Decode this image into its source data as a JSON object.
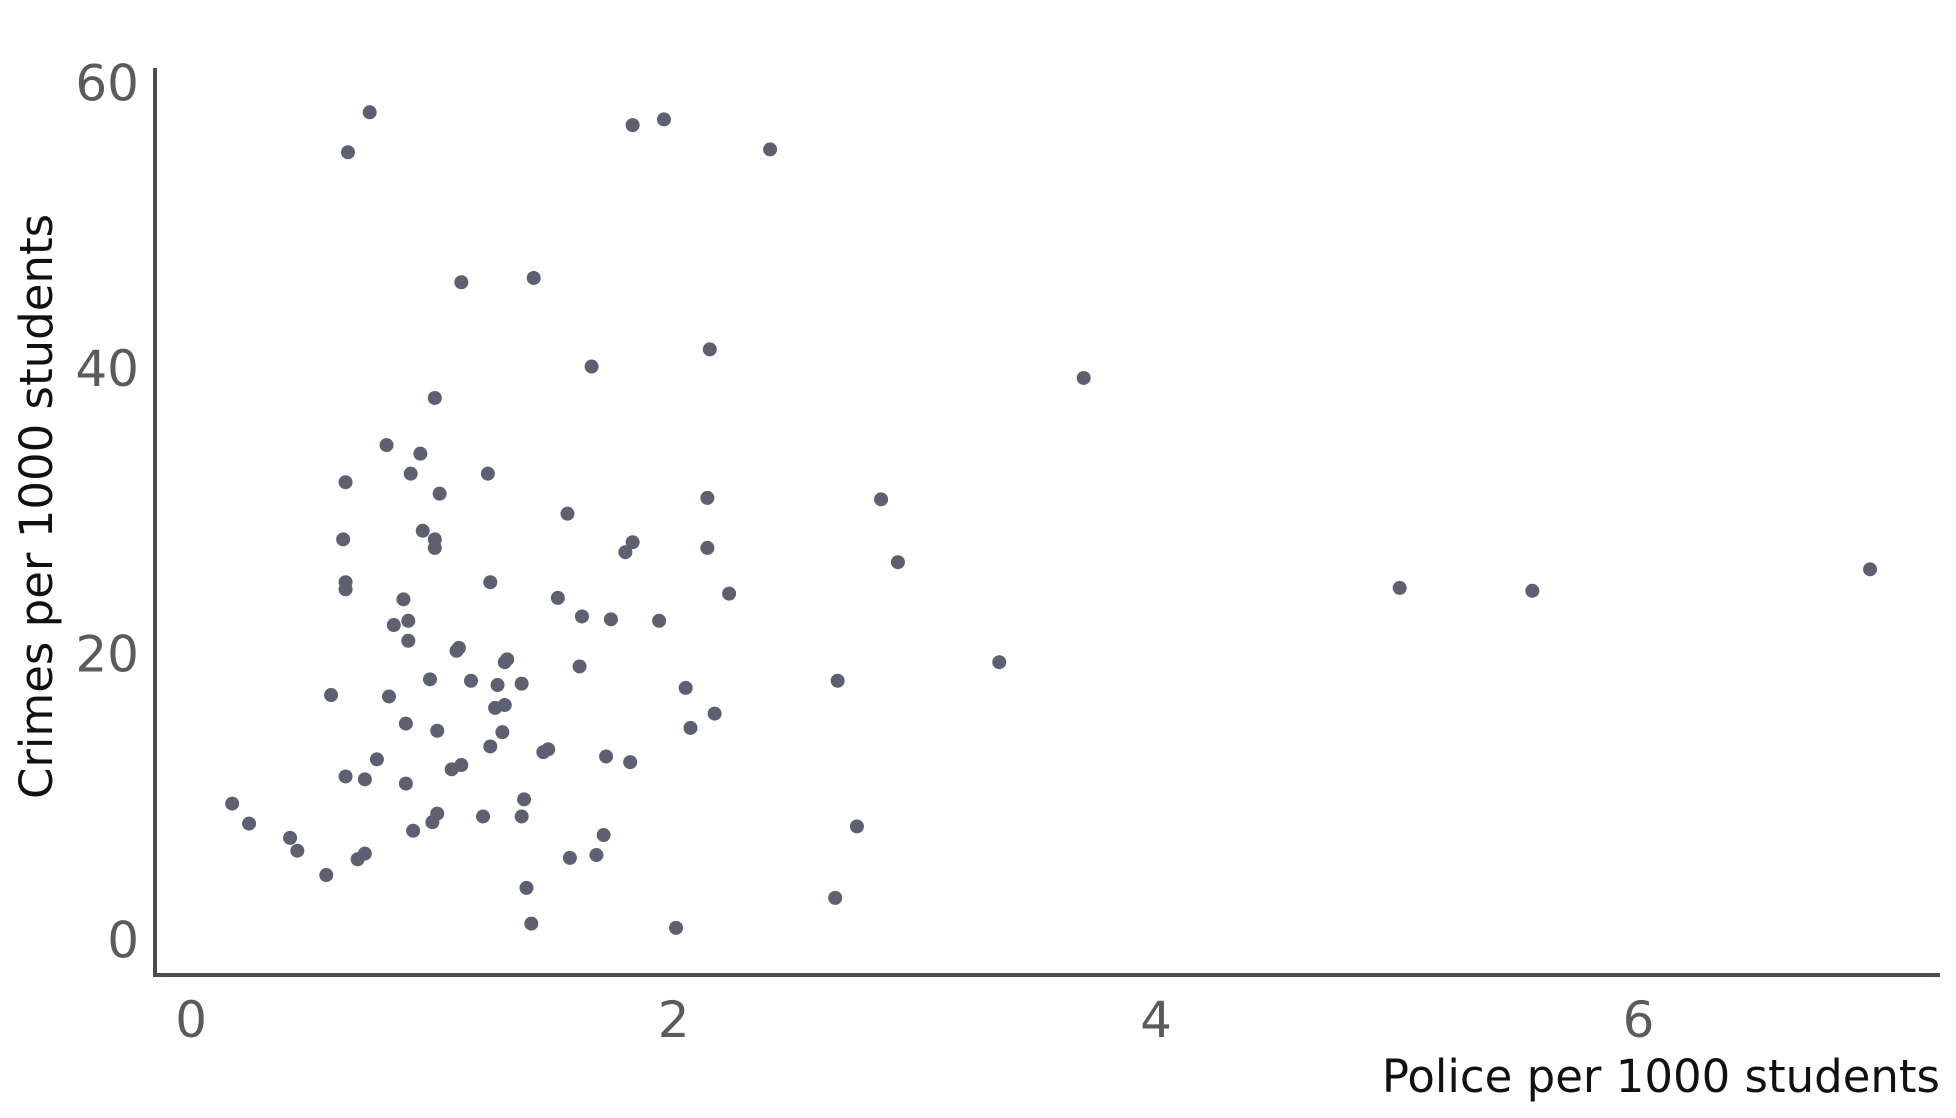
{
  "chart_data": {
    "type": "scatter",
    "title": "",
    "xlabel": "Police per 1000 students",
    "ylabel": "Crimes per 1000 students",
    "xlim": [
      -0.15,
      7.25
    ],
    "ylim": [
      -2.5,
      61
    ],
    "x_ticks": [
      0,
      2,
      4,
      6
    ],
    "y_ticks": [
      0,
      20,
      40,
      60
    ],
    "grid": false,
    "legend": "none",
    "colors": {
      "point": "#5c6070",
      "axis": "#4a4a5a"
    },
    "series": [
      {
        "points": [
          [
            0.17,
            9.5
          ],
          [
            0.24,
            8.1
          ],
          [
            0.41,
            7.1
          ],
          [
            0.44,
            6.2
          ],
          [
            0.56,
            4.5
          ],
          [
            0.58,
            17.1
          ],
          [
            0.64,
            32
          ],
          [
            0.63,
            28
          ],
          [
            0.64,
            25
          ],
          [
            0.64,
            24.5
          ],
          [
            0.64,
            11.4
          ],
          [
            0.65,
            55.1
          ],
          [
            0.69,
            5.6
          ],
          [
            0.72,
            6.0
          ],
          [
            0.72,
            11.2
          ],
          [
            0.74,
            57.9
          ],
          [
            0.77,
            12.6
          ],
          [
            0.81,
            34.6
          ],
          [
            0.82,
            17
          ],
          [
            0.84,
            22
          ],
          [
            0.88,
            23.8
          ],
          [
            0.89,
            15.1
          ],
          [
            0.89,
            10.9
          ],
          [
            0.9,
            22.3
          ],
          [
            0.9,
            20.9
          ],
          [
            0.91,
            32.6
          ],
          [
            0.92,
            7.6
          ],
          [
            0.95,
            34
          ],
          [
            0.96,
            28.6
          ],
          [
            0.99,
            18.2
          ],
          [
            1.0,
            8.2
          ],
          [
            1.01,
            37.9
          ],
          [
            1.01,
            27.4
          ],
          [
            1.01,
            28
          ],
          [
            1.02,
            14.6
          ],
          [
            1.02,
            8.8
          ],
          [
            1.03,
            31.2
          ],
          [
            1.08,
            11.9
          ],
          [
            1.1,
            20.2
          ],
          [
            1.11,
            20.4
          ],
          [
            1.12,
            12.2
          ],
          [
            1.12,
            46
          ],
          [
            1.16,
            18.1
          ],
          [
            1.21,
            8.6
          ],
          [
            1.23,
            32.6
          ],
          [
            1.24,
            25
          ],
          [
            1.24,
            13.5
          ],
          [
            1.26,
            16.2
          ],
          [
            1.27,
            17.8
          ],
          [
            1.29,
            14.5
          ],
          [
            1.3,
            19.4
          ],
          [
            1.3,
            16.4
          ],
          [
            1.31,
            19.6
          ],
          [
            1.37,
            8.6
          ],
          [
            1.37,
            17.9
          ],
          [
            1.38,
            9.8
          ],
          [
            1.39,
            3.6
          ],
          [
            1.41,
            1.1
          ],
          [
            1.42,
            46.3
          ],
          [
            1.46,
            13.1
          ],
          [
            1.48,
            13.3
          ],
          [
            1.52,
            23.9
          ],
          [
            1.56,
            29.8
          ],
          [
            1.57,
            5.7
          ],
          [
            1.62,
            22.6
          ],
          [
            1.61,
            19.1
          ],
          [
            1.66,
            40.1
          ],
          [
            1.68,
            5.9
          ],
          [
            1.71,
            7.3
          ],
          [
            1.72,
            12.8
          ],
          [
            1.74,
            22.4
          ],
          [
            1.8,
            27.1
          ],
          [
            1.83,
            57.0
          ],
          [
            1.83,
            27.8
          ],
          [
            1.82,
            12.4
          ],
          [
            1.94,
            22.3
          ],
          [
            1.96,
            57.4
          ],
          [
            2.01,
            0.8
          ],
          [
            2.05,
            17.6
          ],
          [
            2.07,
            14.8
          ],
          [
            2.14,
            30.9
          ],
          [
            2.14,
            27.4
          ],
          [
            2.15,
            41.3
          ],
          [
            2.17,
            15.8
          ],
          [
            2.23,
            24.2
          ],
          [
            2.4,
            55.3
          ],
          [
            2.67,
            2.9
          ],
          [
            2.68,
            18.1
          ],
          [
            2.76,
            7.9
          ],
          [
            2.86,
            30.8
          ],
          [
            2.93,
            26.4
          ],
          [
            3.35,
            19.4
          ],
          [
            3.7,
            39.3
          ],
          [
            5.01,
            24.6
          ],
          [
            5.56,
            24.4
          ],
          [
            6.96,
            25.9
          ]
        ]
      }
    ]
  }
}
